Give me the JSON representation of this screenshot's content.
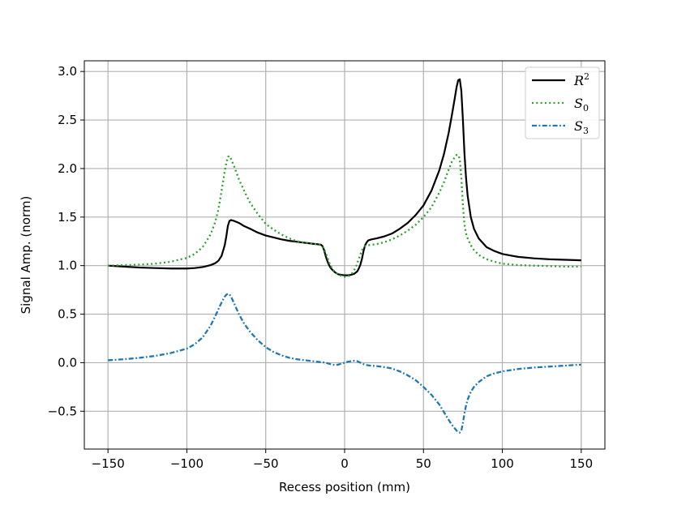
{
  "chart_data": {
    "type": "line",
    "title": "",
    "xlabel": "Recess position (mm)",
    "ylabel": "Signal Amp. (norm)",
    "xlim": [
      -165,
      165
    ],
    "ylim": [
      -0.89,
      3.11
    ],
    "xticks": [
      -150,
      -100,
      -50,
      0,
      50,
      100,
      150
    ],
    "xtick_labels": [
      "−150",
      "−100",
      "−50",
      "0",
      "50",
      "100",
      "150"
    ],
    "yticks": [
      -0.5,
      0.0,
      0.5,
      1.0,
      1.5,
      2.0,
      2.5,
      3.0
    ],
    "ytick_labels": [
      "−0.5",
      "0.0",
      "0.5",
      "1.0",
      "1.5",
      "2.0",
      "2.5",
      "3.0"
    ],
    "grid": true,
    "legend_position": "top-right",
    "series": [
      {
        "name": "R",
        "sup": "2",
        "color": "#000000",
        "style": "solid",
        "x": [
          -150,
          -140,
          -130,
          -120,
          -110,
          -100,
          -95,
          -90,
          -85,
          -82,
          -80,
          -78,
          -76,
          -75,
          -74,
          -73,
          -72,
          -70,
          -67,
          -64,
          -60,
          -55,
          -50,
          -45,
          -40,
          -35,
          -30,
          -25,
          -20,
          -17,
          -15,
          -14,
          -13,
          -12,
          -11,
          -10,
          -9,
          -8,
          -7,
          -6,
          -5,
          -4,
          -2,
          0,
          2,
          4,
          6,
          8,
          9,
          10,
          11,
          12,
          13,
          14,
          15,
          17,
          20,
          25,
          30,
          35,
          40,
          45,
          50,
          55,
          60,
          63,
          66,
          68,
          70,
          71,
          72,
          73,
          74,
          75,
          76,
          77,
          78,
          80,
          82,
          85,
          90,
          95,
          100,
          110,
          120,
          130,
          140,
          150
        ],
        "y": [
          1.0,
          0.99,
          0.98,
          0.975,
          0.97,
          0.97,
          0.975,
          0.985,
          1.005,
          1.025,
          1.05,
          1.1,
          1.21,
          1.3,
          1.41,
          1.46,
          1.47,
          1.46,
          1.44,
          1.41,
          1.38,
          1.34,
          1.31,
          1.29,
          1.27,
          1.255,
          1.245,
          1.235,
          1.225,
          1.22,
          1.215,
          1.2,
          1.16,
          1.1,
          1.05,
          1.01,
          0.98,
          0.96,
          0.945,
          0.93,
          0.92,
          0.91,
          0.905,
          0.9,
          0.9,
          0.905,
          0.915,
          0.94,
          0.97,
          1.01,
          1.07,
          1.15,
          1.21,
          1.24,
          1.26,
          1.27,
          1.28,
          1.3,
          1.33,
          1.38,
          1.44,
          1.52,
          1.62,
          1.77,
          1.98,
          2.15,
          2.37,
          2.55,
          2.74,
          2.84,
          2.91,
          2.92,
          2.8,
          2.5,
          2.15,
          1.9,
          1.72,
          1.5,
          1.38,
          1.28,
          1.19,
          1.15,
          1.12,
          1.09,
          1.075,
          1.065,
          1.06,
          1.055
        ]
      },
      {
        "name": "S",
        "sub": "0",
        "color": "#2ca02c",
        "style": "dotted",
        "x": [
          -150,
          -140,
          -130,
          -120,
          -110,
          -100,
          -95,
          -90,
          -85,
          -82,
          -80,
          -78,
          -76,
          -75,
          -74,
          -73,
          -72,
          -70,
          -67,
          -64,
          -60,
          -55,
          -50,
          -45,
          -40,
          -35,
          -30,
          -25,
          -20,
          -17,
          -15,
          -13,
          -11,
          -9,
          -7,
          -5,
          -3,
          0,
          3,
          5,
          7,
          9,
          11,
          13,
          15,
          17,
          20,
          25,
          30,
          35,
          40,
          45,
          50,
          55,
          60,
          63,
          66,
          68,
          70,
          71,
          72,
          73,
          74,
          75,
          76,
          77,
          78,
          80,
          82,
          85,
          90,
          95,
          100,
          110,
          120,
          130,
          140,
          150
        ],
        "y": [
          1.0,
          1.005,
          1.01,
          1.02,
          1.04,
          1.08,
          1.12,
          1.19,
          1.32,
          1.45,
          1.58,
          1.77,
          1.97,
          2.06,
          2.12,
          2.13,
          2.1,
          2.02,
          1.89,
          1.78,
          1.65,
          1.53,
          1.43,
          1.37,
          1.32,
          1.28,
          1.25,
          1.235,
          1.225,
          1.22,
          1.21,
          1.17,
          1.09,
          1.0,
          0.95,
          0.92,
          0.9,
          0.885,
          0.895,
          0.925,
          0.98,
          1.07,
          1.16,
          1.2,
          1.21,
          1.215,
          1.22,
          1.24,
          1.27,
          1.31,
          1.36,
          1.42,
          1.5,
          1.6,
          1.75,
          1.86,
          1.99,
          2.07,
          2.12,
          2.14,
          2.14,
          2.1,
          1.9,
          1.62,
          1.42,
          1.33,
          1.28,
          1.21,
          1.16,
          1.11,
          1.065,
          1.04,
          1.02,
          1.005,
          1.0,
          0.995,
          0.99,
          0.99
        ]
      },
      {
        "name": "S",
        "sub": "3",
        "color": "#1f77b4",
        "style": "dashdot",
        "x": [
          -150,
          -140,
          -130,
          -120,
          -110,
          -100,
          -95,
          -90,
          -85,
          -82,
          -80,
          -78,
          -76,
          -75,
          -74,
          -73,
          -72,
          -70,
          -67,
          -64,
          -60,
          -55,
          -50,
          -45,
          -40,
          -35,
          -30,
          -25,
          -20,
          -15,
          -12,
          -10,
          -8,
          -6,
          -4,
          -2,
          0,
          2,
          4,
          6,
          8,
          10,
          12,
          14,
          16,
          20,
          25,
          30,
          35,
          40,
          45,
          50,
          55,
          60,
          63,
          66,
          68,
          70,
          71,
          72,
          73,
          74,
          75,
          76,
          77,
          78,
          80,
          82,
          85,
          90,
          95,
          100,
          110,
          120,
          130,
          140,
          150
        ],
        "y": [
          0.025,
          0.035,
          0.05,
          0.07,
          0.1,
          0.145,
          0.19,
          0.26,
          0.38,
          0.48,
          0.55,
          0.62,
          0.68,
          0.7,
          0.71,
          0.705,
          0.68,
          0.61,
          0.5,
          0.41,
          0.32,
          0.23,
          0.16,
          0.11,
          0.075,
          0.05,
          0.035,
          0.025,
          0.015,
          0.005,
          0.0,
          -0.01,
          -0.02,
          -0.025,
          -0.02,
          -0.01,
          0.0,
          0.01,
          0.015,
          0.02,
          0.015,
          0.0,
          -0.015,
          -0.025,
          -0.03,
          -0.035,
          -0.045,
          -0.06,
          -0.09,
          -0.13,
          -0.18,
          -0.25,
          -0.33,
          -0.43,
          -0.51,
          -0.59,
          -0.64,
          -0.68,
          -0.7,
          -0.715,
          -0.72,
          -0.7,
          -0.62,
          -0.52,
          -0.44,
          -0.38,
          -0.3,
          -0.25,
          -0.2,
          -0.14,
          -0.11,
          -0.09,
          -0.065,
          -0.05,
          -0.04,
          -0.03,
          -0.02
        ]
      }
    ]
  }
}
